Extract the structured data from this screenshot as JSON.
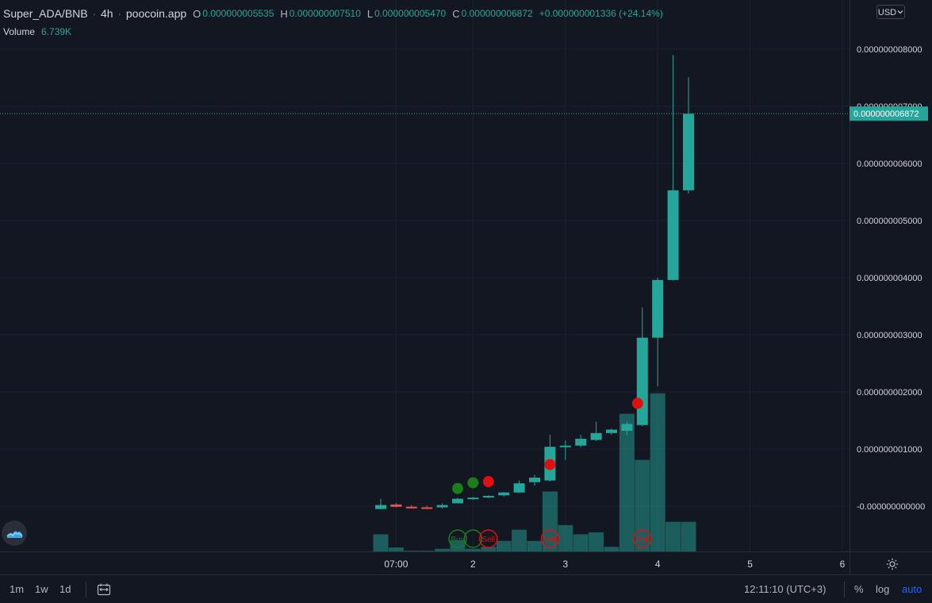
{
  "legend": {
    "symbol": "Super_ADA/BNB",
    "interval": "4h",
    "source": "poocoin.app",
    "open_label": "O",
    "open": "0.000000005535",
    "high_label": "H",
    "high": "0.000000007510",
    "low_label": "L",
    "low": "0.000000005470",
    "close_label": "C",
    "close": "0.000000006872",
    "change": "+0.000000001336 (+24.14%)",
    "volume_label": "Volume",
    "volume": "6.739K"
  },
  "currency": "USD",
  "price_tag": "0.000000006872",
  "bottom_bar": {
    "timeframes": [
      "1m",
      "1w",
      "1d"
    ],
    "clock": "12:11:10 (UTC+3)",
    "percent": "%",
    "log": "log",
    "auto": "auto"
  },
  "colors": {
    "background": "#131722",
    "up": "#26a69a",
    "down": "#ef5350",
    "buy": "#1b7d1b",
    "sell": "#e01010"
  },
  "icons": [
    "logo-icon",
    "calendar-range-icon",
    "settings-icon",
    "chevron-down-icon"
  ],
  "chart_data": {
    "type": "candlestick",
    "y_tick_labels": [
      "0.000000008000",
      "0.000000007000",
      "0.000000006000",
      "0.000000005000",
      "0.000000004000",
      "0.000000003000",
      "0.000000002000",
      "0.000000001000",
      "-0.000000000000"
    ],
    "y_ticks": [
      8.0,
      7.0,
      6.0,
      5.0,
      4.0,
      3.0,
      2.0,
      1.0,
      0.0
    ],
    "y_unit_note": "prices in units of 1e-9",
    "x_tick_labels": [
      {
        "label": "07:00",
        "index": 1
      },
      {
        "label": "2",
        "index": 6
      },
      {
        "label": "3",
        "index": 12
      },
      {
        "label": "4",
        "index": 18
      },
      {
        "label": "5",
        "index": 24
      },
      {
        "label": "6",
        "index": 30
      }
    ],
    "candles": [
      {
        "o": -0.05,
        "h": 0.13,
        "l": -0.05,
        "c": 0.02,
        "v": 0.26
      },
      {
        "o": 0.03,
        "h": 0.06,
        "l": -0.02,
        "c": -0.01,
        "v": 0.06
      },
      {
        "o": -0.01,
        "h": 0.02,
        "l": -0.03,
        "c": -0.02,
        "v": 0.01
      },
      {
        "o": -0.02,
        "h": 0.01,
        "l": -0.04,
        "c": -0.03,
        "v": 0.01
      },
      {
        "o": -0.02,
        "h": 0.05,
        "l": -0.04,
        "c": 0.02,
        "v": 0.04
      },
      {
        "o": 0.05,
        "h": 0.15,
        "l": 0.05,
        "c": 0.13,
        "v": 0.17
      },
      {
        "o": 0.13,
        "h": 0.16,
        "l": 0.11,
        "c": 0.15,
        "v": 0.04
      },
      {
        "o": 0.16,
        "h": 0.19,
        "l": 0.14,
        "c": 0.18,
        "v": 0.07
      },
      {
        "o": 0.19,
        "h": 0.25,
        "l": 0.17,
        "c": 0.24,
        "v": 0.16
      },
      {
        "o": 0.24,
        "h": 0.45,
        "l": 0.23,
        "c": 0.4,
        "v": 0.33
      },
      {
        "o": 0.42,
        "h": 0.55,
        "l": 0.36,
        "c": 0.5,
        "v": 0.16
      },
      {
        "o": 0.45,
        "h": 1.25,
        "l": 0.43,
        "c": 1.04,
        "v": 0.91
      },
      {
        "o": 1.04,
        "h": 1.15,
        "l": 0.81,
        "c": 1.06,
        "v": 0.4
      },
      {
        "o": 1.06,
        "h": 1.25,
        "l": 1.03,
        "c": 1.18,
        "v": 0.26
      },
      {
        "o": 1.16,
        "h": 1.48,
        "l": 1.14,
        "c": 1.28,
        "v": 0.29
      },
      {
        "o": 1.28,
        "h": 1.36,
        "l": 1.25,
        "c": 1.34,
        "v": 0.07
      },
      {
        "o": 1.32,
        "h": 1.48,
        "l": 1.24,
        "c": 1.44,
        "v": 2.09
      },
      {
        "o": 1.42,
        "h": 3.48,
        "l": 1.4,
        "c": 2.95,
        "v": 1.39
      },
      {
        "o": 2.95,
        "h": 4.0,
        "l": 2.1,
        "c": 3.96,
        "v": 2.4
      },
      {
        "o": 3.96,
        "h": 7.9,
        "l": 3.95,
        "c": 5.53,
        "v": 0.45
      },
      {
        "o": 5.53,
        "h": 7.51,
        "l": 5.47,
        "c": 6.87,
        "v": 0.45
      }
    ],
    "markers_above": [
      {
        "index": 5,
        "type": "buy",
        "price": 0.31
      },
      {
        "index": 6,
        "type": "buy",
        "price": 0.41
      },
      {
        "index": 7,
        "type": "sell",
        "price": 0.43
      },
      {
        "index": 11,
        "type": "sell",
        "price": 0.73
      },
      {
        "index": 17,
        "type": "sell",
        "price": 1.8
      }
    ],
    "volume_labels": [
      {
        "index": 5,
        "type": "buy",
        "text": "Buy"
      },
      {
        "index": 6,
        "type": "buy",
        "text": ""
      },
      {
        "index": 7,
        "type": "sell",
        "text": "Sell"
      },
      {
        "index": 11,
        "type": "sell",
        "text": "Sell"
      },
      {
        "index": 17,
        "type": "sell",
        "text": "Sell"
      }
    ],
    "last_price": 6.872
  }
}
